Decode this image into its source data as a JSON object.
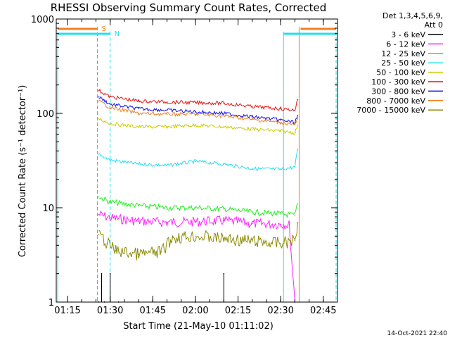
{
  "chart_data": {
    "type": "line",
    "title": "RHESSI Observing Summary Count Rates, Corrected",
    "xlabel": "Start Time (21-May-10 01:11:02)",
    "ylabel": "Corrected Count Rate (s⁻¹ detector⁻¹)",
    "yscale": "log",
    "xlim": [
      "01:11:02",
      "02:50:00"
    ],
    "ylim": [
      1,
      1000
    ],
    "x_ticks": [
      "01:15",
      "01:30",
      "01:45",
      "02:00",
      "02:15",
      "02:30",
      "02:45"
    ],
    "y_ticks": [
      "1",
      "10",
      "100",
      "1000"
    ],
    "legend_position": "right",
    "legend_header": [
      "Det 1,3,4,5,6,9,",
      "Att 0"
    ],
    "timestamp": "14-Oct-2021 22:40",
    "markers": [
      {
        "label": "S",
        "color": "#f08020"
      },
      {
        "label": "N",
        "color": "#22e0f0"
      }
    ],
    "series": [
      {
        "name": "3 - 6 keV",
        "color": "#000000",
        "x": [
          "01:26",
          "01:27",
          "01:28",
          "01:30",
          "01:33",
          "01:40",
          "01:50",
          "02:00",
          "02:10",
          "02:25",
          "02:35"
        ],
        "y": [
          1.0,
          2.0,
          1.0,
          2.0,
          1.0,
          1.0,
          1.0,
          1.0,
          2.0,
          1.0,
          1.0
        ]
      },
      {
        "name": "6 - 12 keV",
        "color": "#ff22ff",
        "x": [
          "01:26",
          "01:30",
          "01:40",
          "01:50",
          "02:00",
          "02:10",
          "02:20",
          "02:30",
          "02:33",
          "02:35"
        ],
        "y": [
          8.5,
          7.8,
          7.2,
          7.0,
          7.1,
          7.3,
          6.8,
          6.7,
          6.6,
          1.0
        ]
      },
      {
        "name": "12 - 25 keV",
        "color": "#22ee22",
        "x": [
          "01:26",
          "01:30",
          "01:40",
          "01:50",
          "02:00",
          "02:10",
          "02:20",
          "02:30",
          "02:35",
          "02:36"
        ],
        "y": [
          13.0,
          11.5,
          10.5,
          10.0,
          10.0,
          9.7,
          9.0,
          8.6,
          8.3,
          11.0
        ]
      },
      {
        "name": "25 - 50 keV",
        "color": "#22e0f0",
        "x": [
          "01:26",
          "01:30",
          "01:40",
          "01:50",
          "02:00",
          "02:10",
          "02:20",
          "02:30",
          "02:35",
          "02:36"
        ],
        "y": [
          37,
          32,
          29,
          28,
          31,
          29,
          26,
          25.5,
          27,
          42
        ]
      },
      {
        "name": "50 - 100 keV",
        "color": "#cccc00",
        "x": [
          "01:26",
          "01:30",
          "01:40",
          "01:50",
          "02:00",
          "02:10",
          "02:20",
          "02:30",
          "02:35",
          "02:36"
        ],
        "y": [
          88,
          78,
          72,
          72,
          75,
          72,
          68,
          65,
          62,
          75
        ]
      },
      {
        "name": "100 - 300 keV",
        "color": "#e81010",
        "x": [
          "01:26",
          "01:30",
          "01:40",
          "01:50",
          "02:00",
          "02:10",
          "02:20",
          "02:30",
          "02:35",
          "02:36"
        ],
        "y": [
          175,
          150,
          135,
          132,
          130,
          128,
          118,
          112,
          108,
          140
        ]
      },
      {
        "name": "300 - 800 keV",
        "color": "#1010e8",
        "x": [
          "01:26",
          "01:30",
          "01:40",
          "01:50",
          "02:00",
          "02:10",
          "02:20",
          "02:30",
          "02:35",
          "02:36"
        ],
        "y": [
          150,
          125,
          112,
          108,
          104,
          100,
          92,
          85,
          80,
          95
        ]
      },
      {
        "name": "800 - 7000 keV",
        "color": "#f08020",
        "x": [
          "01:26",
          "01:30",
          "01:40",
          "01:50",
          "02:00",
          "02:10",
          "02:20",
          "02:30",
          "02:35",
          "02:36"
        ],
        "y": [
          135,
          115,
          100,
          98,
          98,
          94,
          86,
          80,
          76,
          88
        ]
      },
      {
        "name": "7000 - 15000 keV",
        "color": "#8a8a00",
        "x": [
          "01:26",
          "01:29",
          "01:32",
          "01:40",
          "01:48",
          "01:52",
          "02:00",
          "02:10",
          "02:20",
          "02:30",
          "02:35",
          "02:36"
        ],
        "y": [
          5.2,
          4.2,
          3.5,
          3.2,
          3.4,
          4.8,
          5.0,
          4.7,
          4.4,
          4.2,
          4.5,
          7.0
        ]
      }
    ]
  }
}
